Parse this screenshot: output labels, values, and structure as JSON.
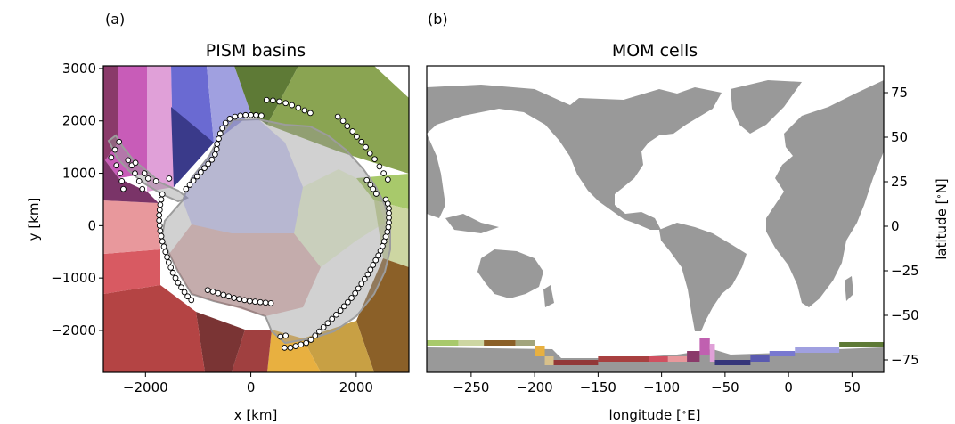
{
  "chart_data": [
    {
      "panel": "(a)",
      "title": "PISM basins",
      "type": "map",
      "xlabel": "x [km]",
      "ylabel": "y [km]",
      "xlim": [
        -2800,
        3000
      ],
      "ylim": [
        -2800,
        3050
      ],
      "xticks": [
        -2000,
        0,
        2000
      ],
      "yticks": [
        -2000,
        -1000,
        0,
        1000,
        2000,
        3000
      ],
      "xtick_labels": [
        "−2000",
        "0",
        "2000"
      ],
      "ytick_labels": [
        "−2000",
        "−1000",
        "0",
        "1000",
        "2000",
        "3000"
      ],
      "ocean_cell_markers": [
        [
          300,
          2400
        ],
        [
          420,
          2390
        ],
        [
          540,
          2370
        ],
        [
          660,
          2340
        ],
        [
          780,
          2300
        ],
        [
          900,
          2250
        ],
        [
          1020,
          2200
        ],
        [
          1130,
          2150
        ],
        [
          1650,
          2080
        ],
        [
          1750,
          2000
        ],
        [
          1830,
          1900
        ],
        [
          1930,
          1800
        ],
        [
          2010,
          1700
        ],
        [
          2100,
          1600
        ],
        [
          2180,
          1500
        ],
        [
          2260,
          1380
        ],
        [
          2350,
          1270
        ],
        [
          2440,
          1130
        ],
        [
          2520,
          1000
        ],
        [
          2600,
          880
        ],
        [
          2200,
          870
        ],
        [
          2270,
          780
        ],
        [
          2320,
          700
        ],
        [
          2380,
          610
        ],
        [
          2560,
          500
        ],
        [
          2600,
          420
        ],
        [
          2620,
          330
        ],
        [
          2620,
          240
        ],
        [
          2620,
          150
        ],
        [
          2620,
          60
        ],
        [
          2610,
          -30
        ],
        [
          2590,
          -120
        ],
        [
          2560,
          -210
        ],
        [
          2530,
          -300
        ],
        [
          2500,
          -390
        ],
        [
          2460,
          -480
        ],
        [
          2420,
          -570
        ],
        [
          2370,
          -660
        ],
        [
          2320,
          -750
        ],
        [
          2270,
          -840
        ],
        [
          2220,
          -930
        ],
        [
          2160,
          -1020
        ],
        [
          2100,
          -1110
        ],
        [
          2040,
          -1200
        ],
        [
          1980,
          -1290
        ],
        [
          1910,
          -1380
        ],
        [
          1840,
          -1460
        ],
        [
          1770,
          -1540
        ],
        [
          1700,
          -1620
        ],
        [
          1620,
          -1700
        ],
        [
          1540,
          -1780
        ],
        [
          1460,
          -1860
        ],
        [
          1380,
          -1940
        ],
        [
          1300,
          -2020
        ],
        [
          1220,
          -2100
        ],
        [
          1140,
          -2180
        ],
        [
          1050,
          -2240
        ],
        [
          950,
          -2270
        ],
        [
          850,
          -2300
        ],
        [
          750,
          -2330
        ],
        [
          640,
          -2330
        ],
        [
          660,
          -2100
        ],
        [
          560,
          -2120
        ],
        [
          -1680,
          600
        ],
        [
          -1700,
          500
        ],
        [
          -1720,
          400
        ],
        [
          -1730,
          300
        ],
        [
          -1740,
          200
        ],
        [
          -1740,
          100
        ],
        [
          -1730,
          0
        ],
        [
          -1720,
          -100
        ],
        [
          -1700,
          -200
        ],
        [
          -1680,
          -300
        ],
        [
          -1650,
          -400
        ],
        [
          -1620,
          -500
        ],
        [
          -1590,
          -600
        ],
        [
          -1560,
          -700
        ],
        [
          -1520,
          -800
        ],
        [
          -1480,
          -900
        ],
        [
          -1430,
          -1000
        ],
        [
          -1380,
          -1090
        ],
        [
          -1320,
          -1180
        ],
        [
          -1260,
          -1270
        ],
        [
          -1200,
          -1350
        ],
        [
          -1130,
          -1420
        ],
        [
          -820,
          -1230
        ],
        [
          -720,
          -1260
        ],
        [
          -620,
          -1290
        ],
        [
          -520,
          -1320
        ],
        [
          -420,
          -1350
        ],
        [
          -320,
          -1380
        ],
        [
          -220,
          -1400
        ],
        [
          -120,
          -1420
        ],
        [
          -20,
          -1440
        ],
        [
          80,
          -1450
        ],
        [
          180,
          -1460
        ],
        [
          280,
          -1470
        ],
        [
          380,
          -1480
        ],
        [
          -1230,
          700
        ],
        [
          -1160,
          780
        ],
        [
          -1090,
          860
        ],
        [
          -1020,
          940
        ],
        [
          -950,
          1020
        ],
        [
          -880,
          1100
        ],
        [
          -810,
          1180
        ],
        [
          -740,
          1260
        ],
        [
          -680,
          1360
        ],
        [
          -650,
          1460
        ],
        [
          -640,
          1560
        ],
        [
          -610,
          1660
        ],
        [
          -580,
          1760
        ],
        [
          -540,
          1860
        ],
        [
          -480,
          1960
        ],
        [
          -400,
          2040
        ],
        [
          -300,
          2080
        ],
        [
          -200,
          2100
        ],
        [
          -100,
          2110
        ],
        [
          0,
          2110
        ],
        [
          100,
          2110
        ],
        [
          200,
          2100
        ],
        [
          -2650,
          1300
        ],
        [
          -2580,
          1450
        ],
        [
          -2550,
          1150
        ],
        [
          -2480,
          1000
        ],
        [
          -2450,
          850
        ],
        [
          -2420,
          700
        ],
        [
          -2330,
          1250
        ],
        [
          -2260,
          1150
        ],
        [
          -2200,
          1000
        ],
        [
          -2120,
          850
        ],
        [
          -2060,
          700
        ],
        [
          -2190,
          1200
        ],
        [
          -2020,
          1000
        ],
        [
          -1950,
          900
        ],
        [
          -1800,
          850
        ],
        [
          -2500,
          1600
        ],
        [
          -1550,
          900
        ]
      ]
    },
    {
      "panel": "(b)",
      "title": "MOM cells",
      "type": "map",
      "xlabel": "longitude [$^\\circ$E]",
      "ylabel": "latitude [$^\\circ$N]",
      "xlim": [
        -285,
        75
      ],
      "ylim": [
        -82,
        90
      ],
      "xticks": [
        -250,
        -200,
        -150,
        -100,
        -50,
        0,
        50
      ],
      "yticks": [
        -75,
        -50,
        -25,
        0,
        25,
        50,
        75
      ],
      "xtick_labels": [
        "−250",
        "−200",
        "−150",
        "−100",
        "−50",
        "0",
        "50"
      ],
      "ytick_labels": [
        "−75",
        "−50",
        "−25",
        "0",
        "25",
        "50",
        "75"
      ],
      "basin_coast_cells": [
        {
          "lon": [
            -285,
            -260
          ],
          "lat": [
            -67,
            -64
          ],
          "color": "#a8c96b"
        },
        {
          "lon": [
            -260,
            -240
          ],
          "lat": [
            -67,
            -64
          ],
          "color": "#cdd6a2"
        },
        {
          "lon": [
            -240,
            -215
          ],
          "lat": [
            -67,
            -64
          ],
          "color": "#8b6028"
        },
        {
          "lon": [
            -215,
            -200
          ],
          "lat": [
            -67,
            -64
          ],
          "color": "#a2a47c"
        },
        {
          "lon": [
            -200,
            -192
          ],
          "lat": [
            -73,
            -67
          ],
          "color": "#e8b040"
        },
        {
          "lon": [
            -192,
            -185
          ],
          "lat": [
            -78,
            -73
          ],
          "color": "#d8c08a"
        },
        {
          "lon": [
            -185,
            -150
          ],
          "lat": [
            -78,
            -75
          ],
          "color": "#923838"
        },
        {
          "lon": [
            -150,
            -110
          ],
          "lat": [
            -76,
            -73
          ],
          "color": "#a84040"
        },
        {
          "lon": [
            -110,
            -95
          ],
          "lat": [
            -76,
            -73
          ],
          "color": "#d05060"
        },
        {
          "lon": [
            -95,
            -80
          ],
          "lat": [
            -76,
            -73
          ],
          "color": "#e8989c"
        },
        {
          "lon": [
            -80,
            -70
          ],
          "lat": [
            -76,
            -70
          ],
          "color": "#8a3a6a"
        },
        {
          "lon": [
            -70,
            -62
          ],
          "lat": [
            -72,
            -63
          ],
          "color": "#c060b0"
        },
        {
          "lon": [
            -62,
            -58
          ],
          "lat": [
            -76,
            -66
          ],
          "color": "#e0a0d8"
        },
        {
          "lon": [
            -58,
            -30
          ],
          "lat": [
            -78,
            -75
          ],
          "color": "#36367a"
        },
        {
          "lon": [
            -30,
            -15
          ],
          "lat": [
            -76,
            -72
          ],
          "color": "#5a5ab0"
        },
        {
          "lon": [
            -15,
            5
          ],
          "lat": [
            -73,
            -70
          ],
          "color": "#7878d0"
        },
        {
          "lon": [
            5,
            40
          ],
          "lat": [
            -71,
            -68
          ],
          "color": "#a0a0e0"
        },
        {
          "lon": [
            40,
            75
          ],
          "lat": [
            -68,
            -65
          ],
          "color": "#5e7a36"
        }
      ]
    }
  ]
}
